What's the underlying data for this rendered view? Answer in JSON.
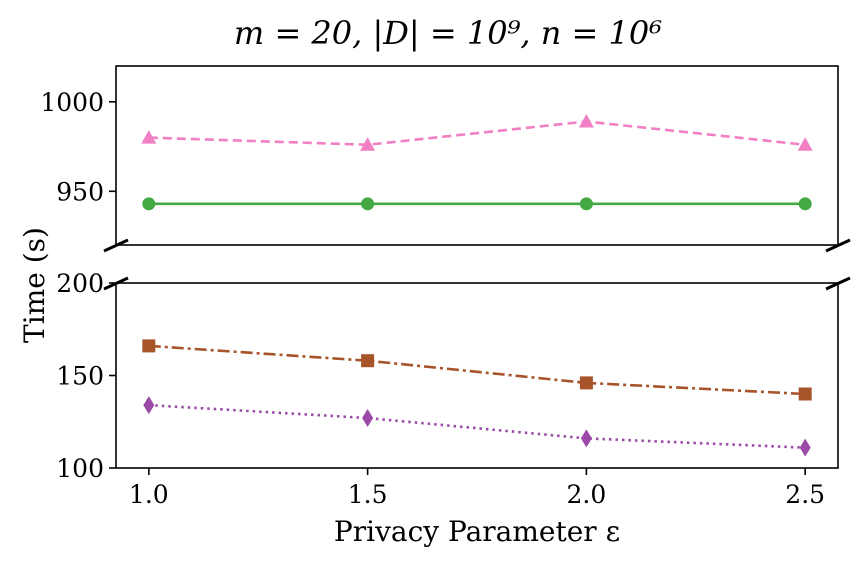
{
  "chart_data": {
    "type": "line",
    "title": "m = 20, |D| = 10⁹, n = 10⁶",
    "xlabel": "Privacy Parameter ε",
    "ylabel": "Time (s)",
    "x": [
      1.0,
      1.5,
      2.0,
      2.5
    ],
    "x_ticks": [
      "1.0",
      "1.5",
      "2.0",
      "2.5"
    ],
    "broken_y_axis": true,
    "upper_panel": {
      "ylim": [
        920,
        1020
      ],
      "y_ticks": [
        "950",
        "1000"
      ]
    },
    "lower_panel": {
      "ylim": [
        100,
        200
      ],
      "y_ticks": [
        "100",
        "150",
        "200"
      ]
    },
    "series": [
      {
        "name": "series-pink-triangle",
        "color": "#f07fc4",
        "line": "dashed",
        "marker": "triangle",
        "panel": "upper",
        "values": [
          980,
          976,
          989,
          976
        ]
      },
      {
        "name": "series-green-circle",
        "color": "#44a844",
        "line": "solid",
        "marker": "circle",
        "panel": "upper",
        "values": [
          943,
          943,
          943,
          943
        ]
      },
      {
        "name": "series-brown-square",
        "color": "#a8542a",
        "line": "dashdot",
        "marker": "square",
        "panel": "lower",
        "values": [
          166,
          158,
          146,
          140
        ]
      },
      {
        "name": "series-purple-diamond",
        "color": "#9b4aa8",
        "line": "dotted",
        "marker": "diamond",
        "panel": "lower",
        "values": [
          134,
          127,
          116,
          111
        ]
      }
    ]
  }
}
